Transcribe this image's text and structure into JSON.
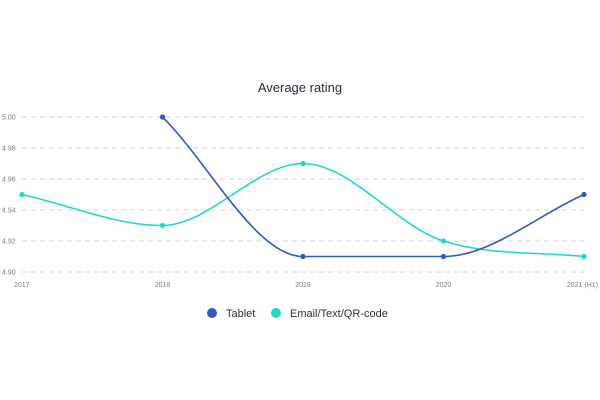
{
  "chart_data": {
    "type": "line",
    "title": "Average rating",
    "x": [
      "2017",
      "2018",
      "2019",
      "2020",
      "2021 (H1)"
    ],
    "ylim": [
      4.9,
      5.0
    ],
    "yticks": [
      "4.90",
      "4.92",
      "4.94",
      "4.96",
      "4.98",
      "5.00"
    ],
    "grid": true,
    "legend_position": "bottom",
    "series": [
      {
        "name": "Tablet",
        "color": "#3457c8",
        "values": [
          null,
          5.0,
          4.91,
          4.91,
          4.95
        ]
      },
      {
        "name": "Email/Text/QR-code",
        "color": "#1ddac8",
        "values": [
          4.95,
          4.93,
          4.97,
          4.92,
          4.91
        ]
      }
    ]
  }
}
